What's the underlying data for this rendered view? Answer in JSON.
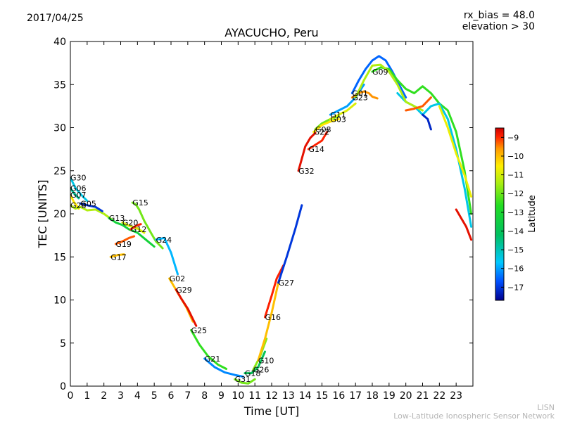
{
  "header": {
    "date": "2017/04/25",
    "rx_bias": "rx_bias = 48.0",
    "elevation": "elevation > 30"
  },
  "footer": {
    "credit_line1": "LISN",
    "credit_line2": "Low-Latitude Ionospheric Sensor Network"
  },
  "chart_data": {
    "type": "scatter",
    "title": "AYACUCHO, Peru",
    "xlabel": "Time [UT]",
    "ylabel": "TEC [UNITS]",
    "xlim": [
      0,
      24
    ],
    "ylim": [
      0,
      40
    ],
    "xticks": [
      0,
      1,
      2,
      3,
      4,
      5,
      6,
      7,
      8,
      9,
      10,
      11,
      12,
      13,
      14,
      15,
      16,
      17,
      18,
      19,
      20,
      21,
      22,
      23
    ],
    "yticks": [
      0,
      5,
      10,
      15,
      20,
      25,
      30,
      35,
      40
    ],
    "grid": false,
    "colorbar": {
      "label": "Latitude",
      "range": [
        -17.7,
        -8.5
      ],
      "ticks": [
        -9,
        -10,
        -11,
        -12,
        -13,
        -14,
        -15,
        -16,
        -17
      ],
      "colormap": [
        "#00008f",
        "#0050ff",
        "#00c8ff",
        "#00c060",
        "#22dd22",
        "#aaee11",
        "#ffee00",
        "#ff9900",
        "#ff2200",
        "#cc0000"
      ]
    },
    "series": [
      {
        "name": "G30",
        "lat": -15.5,
        "x": [
          0.0,
          0.3,
          0.7,
          1.0
        ],
        "y": [
          24.2,
          23.0,
          22.1,
          21.5
        ]
      },
      {
        "name": "G06",
        "lat": -15.0,
        "x": [
          0.0,
          0.2,
          0.5
        ],
        "y": [
          23.0,
          22.4,
          21.8
        ]
      },
      {
        "name": "G07",
        "lat": -11.5,
        "x": [
          0.0,
          0.2,
          0.5
        ],
        "y": [
          22.2,
          21.4,
          20.6
        ]
      },
      {
        "name": "G28",
        "lat": -12.5,
        "x": [
          0.0,
          0.3,
          0.6,
          1.0,
          1.5,
          2.0,
          2.5
        ],
        "y": [
          21.0,
          20.6,
          20.8,
          20.4,
          20.5,
          20.0,
          19.3
        ]
      },
      {
        "name": "G05",
        "lat": -17.0,
        "x": [
          0.6,
          1.0,
          1.5,
          1.9
        ],
        "y": [
          21.2,
          21.0,
          20.8,
          20.3
        ]
      },
      {
        "name": "G13",
        "lat": -14.0,
        "x": [
          2.3,
          2.7,
          3.1,
          3.5,
          4.0,
          4.5,
          5.0
        ],
        "y": [
          19.5,
          19.0,
          18.7,
          18.2,
          17.8,
          17.0,
          16.2
        ]
      },
      {
        "name": "G20",
        "lat": -12.0,
        "x": [
          3.1,
          3.5,
          4.0,
          4.4
        ],
        "y": [
          19.0,
          18.6,
          18.3,
          17.8
        ]
      },
      {
        "name": "G15",
        "lat": -13.0,
        "x": [
          3.7,
          3.9,
          4.1,
          4.4,
          4.8,
          5.1,
          5.5
        ],
        "y": [
          21.3,
          21.1,
          20.5,
          19.2,
          17.8,
          16.8,
          16.0
        ]
      },
      {
        "name": "G12",
        "lat": -9.5,
        "x": [
          3.6,
          3.9,
          4.2
        ],
        "y": [
          18.2,
          18.6,
          18.8
        ]
      },
      {
        "name": "G19",
        "lat": -10.0,
        "x": [
          2.7,
          3.1,
          3.5,
          3.8
        ],
        "y": [
          16.5,
          16.8,
          17.2,
          17.4
        ]
      },
      {
        "name": "G17",
        "lat": -11.0,
        "x": [
          2.4,
          2.8,
          3.2
        ],
        "y": [
          15.0,
          15.2,
          15.3
        ]
      },
      {
        "name": "G24",
        "lat": -15.8,
        "x": [
          5.1,
          5.6,
          6.0,
          6.4
        ],
        "y": [
          17.0,
          17.2,
          15.5,
          13.0
        ]
      },
      {
        "name": "G02",
        "lat": -11.0,
        "x": [
          5.9,
          6.2,
          6.5,
          6.9,
          7.3
        ],
        "y": [
          12.5,
          11.5,
          10.5,
          9.2,
          7.5
        ]
      },
      {
        "name": "G29",
        "lat": -9.0,
        "x": [
          6.3,
          6.6,
          7.0,
          7.5
        ],
        "y": [
          11.2,
          10.2,
          9.0,
          7.0
        ]
      },
      {
        "name": "G25",
        "lat": -13.5,
        "x": [
          7.2,
          7.7,
          8.2,
          8.8,
          9.3
        ],
        "y": [
          6.5,
          4.8,
          3.5,
          2.5,
          2.0
        ]
      },
      {
        "name": "G21",
        "lat": -16.2,
        "x": [
          8.0,
          8.6,
          9.2,
          9.8,
          10.3
        ],
        "y": [
          3.2,
          2.2,
          1.6,
          1.3,
          1.1
        ]
      },
      {
        "name": "G31",
        "lat": -13.0,
        "x": [
          9.8,
          10.2,
          10.6,
          11.0
        ],
        "y": [
          0.8,
          0.4,
          0.3,
          0.8
        ]
      },
      {
        "name": "G18",
        "lat": -14.5,
        "x": [
          10.4,
          10.8,
          11.2,
          11.6
        ],
        "y": [
          1.5,
          1.5,
          2.2,
          4.0
        ]
      },
      {
        "name": "G26",
        "lat": -12.8,
        "x": [
          10.9,
          11.3,
          11.7
        ],
        "y": [
          1.9,
          3.4,
          5.5
        ]
      },
      {
        "name": "G10",
        "lat": -11.0,
        "x": [
          11.2,
          11.6,
          12.0,
          12.4
        ],
        "y": [
          3.0,
          5.5,
          8.5,
          12.0
        ]
      },
      {
        "name": "G16",
        "lat": -9.5,
        "x": [
          11.6,
          12.0,
          12.3,
          12.7
        ],
        "y": [
          8.0,
          10.5,
          12.5,
          14.0
        ]
      },
      {
        "name": "G27",
        "lat": -17.0,
        "x": [
          12.4,
          12.9,
          13.4,
          13.8
        ],
        "y": [
          12.0,
          15.0,
          18.2,
          21.0
        ]
      },
      {
        "name": "G32",
        "lat": -9.0,
        "x": [
          13.6,
          14.0,
          14.3,
          14.6
        ],
        "y": [
          25.0,
          27.8,
          28.8,
          29.4
        ]
      },
      {
        "name": "G14",
        "lat": -9.5,
        "x": [
          14.2,
          14.6,
          15.0,
          15.3
        ],
        "y": [
          27.5,
          28.0,
          28.5,
          29.5
        ]
      },
      {
        "name": "G08",
        "lat": -13.0,
        "x": [
          14.6,
          15.0,
          15.5,
          16.0
        ],
        "y": [
          29.8,
          30.5,
          31.0,
          31.3
        ]
      },
      {
        "name": "G22",
        "lat": -11.5,
        "x": [
          14.5,
          15.0,
          15.5,
          16.0
        ],
        "y": [
          29.5,
          30.3,
          30.7,
          31.0
        ]
      },
      {
        "name": "G11",
        "lat": -16.0,
        "x": [
          15.5,
          16.0,
          16.5,
          17.0,
          17.5
        ],
        "y": [
          31.5,
          32.0,
          32.5,
          33.5,
          35.0
        ]
      },
      {
        "name": "G03",
        "lat": -12.0,
        "x": [
          15.5,
          16.0,
          16.5,
          17.0
        ],
        "y": [
          31.0,
          31.5,
          32.0,
          32.8
        ]
      },
      {
        "name": "G01",
        "lat": -16.5,
        "x": [
          16.8,
          17.2,
          17.6,
          18.0,
          18.4,
          18.8,
          19.2,
          19.6,
          20.0
        ],
        "y": [
          34.0,
          35.5,
          36.8,
          37.8,
          38.3,
          37.8,
          36.5,
          35.0,
          33.5
        ]
      },
      {
        "name": "G23",
        "lat": -10.5,
        "x": [
          16.8,
          17.2,
          17.5,
          17.8,
          18.0,
          18.3
        ],
        "y": [
          33.5,
          34.0,
          34.2,
          34.0,
          33.6,
          33.4
        ]
      },
      {
        "name": "G09",
        "lat": -13.5,
        "x": [
          18.0,
          18.5,
          19.0,
          19.5,
          20.0,
          20.5,
          21.0,
          21.5,
          22.0,
          22.5,
          23.0,
          23.5,
          23.9
        ],
        "y": [
          36.5,
          37.0,
          36.8,
          35.5,
          34.5,
          34.0,
          34.8,
          34.0,
          32.8,
          32.0,
          29.5,
          25.0,
          20.0
        ]
      },
      {
        "name": "",
        "lat": -15.5,
        "x": [
          19.5,
          20.0,
          20.5,
          21.0,
          21.5,
          22.0,
          22.5,
          23.0,
          23.5,
          23.9
        ],
        "y": [
          34.0,
          33.0,
          32.5,
          31.5,
          32.5,
          32.8,
          31.0,
          27.5,
          23.0,
          18.5
        ]
      },
      {
        "name": "",
        "lat": -12.5,
        "x": [
          17.0,
          17.5,
          18.0,
          18.5,
          19.0,
          19.5,
          20.0,
          20.5,
          21.0
        ],
        "y": [
          33.5,
          35.5,
          37.2,
          37.3,
          36.5,
          35.0,
          33.0,
          32.5,
          32.0
        ]
      },
      {
        "name": "",
        "lat": -11.8,
        "x": [
          22.0,
          22.5,
          23.0,
          23.5,
          23.9
        ],
        "y": [
          32.5,
          30.0,
          27.0,
          24.5,
          22.0
        ]
      },
      {
        "name": "",
        "lat": -10.0,
        "x": [
          20.0,
          20.5,
          21.0,
          21.5
        ],
        "y": [
          32.0,
          32.2,
          32.5,
          33.5
        ]
      },
      {
        "name": "",
        "lat": -17.2,
        "x": [
          21.0,
          21.3,
          21.5
        ],
        "y": [
          31.5,
          31.0,
          29.8
        ]
      },
      {
        "name": "",
        "lat": -9.0,
        "x": [
          23.0,
          23.3,
          23.6,
          23.9
        ],
        "y": [
          20.5,
          19.5,
          18.5,
          17.0
        ]
      }
    ]
  }
}
